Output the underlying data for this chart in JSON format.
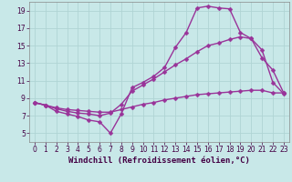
{
  "background_color": "#c8e8e8",
  "grid_color": "#b0d4d4",
  "line_color": "#993399",
  "marker": "D",
  "markersize": 2.5,
  "linewidth": 1.0,
  "xlim": [
    -0.5,
    23.5
  ],
  "ylim": [
    4,
    20
  ],
  "xticks": [
    0,
    1,
    2,
    3,
    4,
    5,
    6,
    7,
    8,
    9,
    10,
    11,
    12,
    13,
    14,
    15,
    16,
    17,
    18,
    19,
    20,
    21,
    22,
    23
  ],
  "yticks": [
    5,
    7,
    9,
    11,
    13,
    15,
    17,
    19
  ],
  "xlabel": "Windchill (Refroidissement éolien,°C)",
  "xlabel_fontsize": 6.5,
  "tick_fontsize": 5.5,
  "line1_x": [
    0,
    1,
    2,
    3,
    4,
    5,
    6,
    7,
    8,
    9,
    10,
    11,
    12,
    13,
    14,
    15,
    16,
    17,
    18,
    19,
    20,
    21,
    22,
    23
  ],
  "line1_y": [
    8.5,
    8.2,
    7.5,
    7.2,
    6.9,
    6.5,
    6.3,
    5.0,
    7.2,
    10.2,
    10.8,
    11.5,
    12.5,
    14.8,
    16.5,
    19.3,
    19.5,
    19.3,
    19.2,
    16.5,
    15.8,
    13.6,
    12.2,
    9.6
  ],
  "line2_x": [
    0,
    1,
    2,
    3,
    4,
    5,
    6,
    7,
    8,
    9,
    10,
    11,
    12,
    13,
    14,
    15,
    16,
    17,
    18,
    19,
    20,
    21,
    22,
    23
  ],
  "line2_y": [
    8.5,
    8.2,
    7.8,
    7.5,
    7.3,
    7.2,
    7.0,
    7.3,
    8.3,
    9.8,
    10.5,
    11.2,
    12.0,
    12.8,
    13.5,
    14.3,
    15.0,
    15.3,
    15.7,
    16.0,
    15.8,
    14.5,
    10.8,
    9.5
  ],
  "line3_x": [
    0,
    1,
    2,
    3,
    4,
    5,
    6,
    7,
    8,
    9,
    10,
    11,
    12,
    13,
    14,
    15,
    16,
    17,
    18,
    19,
    20,
    21,
    22,
    23
  ],
  "line3_y": [
    8.5,
    8.2,
    7.9,
    7.7,
    7.6,
    7.5,
    7.4,
    7.4,
    7.7,
    8.0,
    8.3,
    8.5,
    8.8,
    9.0,
    9.2,
    9.4,
    9.5,
    9.6,
    9.7,
    9.8,
    9.9,
    9.9,
    9.6,
    9.6
  ]
}
